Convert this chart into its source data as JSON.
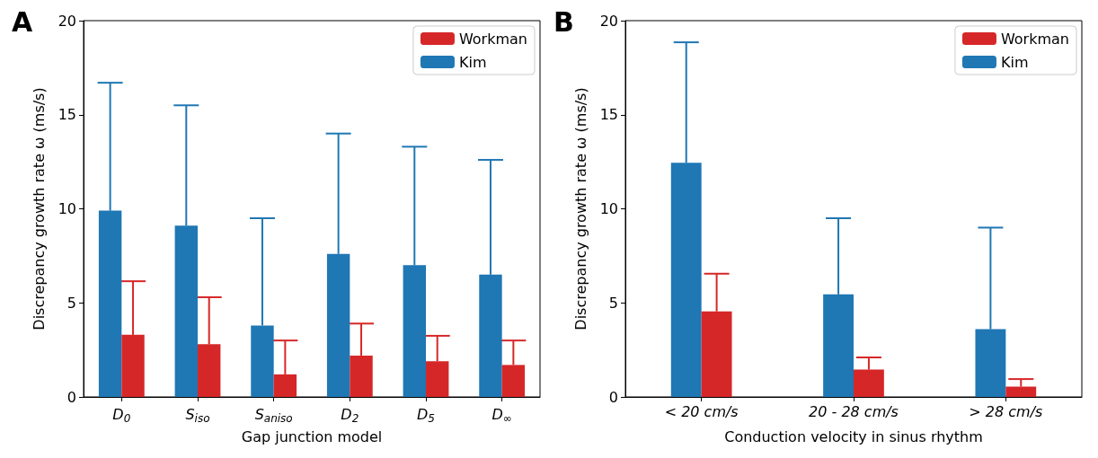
{
  "chart_data": [
    {
      "type": "bar",
      "title": "A",
      "xlabel": "Gap junction model",
      "ylabel": "Discrepancy growth rate ω (ms/s)",
      "categories": [
        "D$_{0}$",
        "S$_{iso}$",
        "S$_{aniso}$",
        "D$_{2}$",
        "D$_{5}$",
        "D$_{∞}$"
      ],
      "series": [
        {
          "name": "Kim",
          "color": "#1f77b4",
          "values": [
            9.9,
            9.1,
            3.8,
            7.6,
            7.0,
            6.5
          ],
          "errors": [
            [
              9.9,
              16.7
            ],
            [
              9.1,
              15.5
            ],
            [
              3.8,
              9.5
            ],
            [
              7.6,
              14.0
            ],
            [
              7.0,
              13.3
            ],
            [
              6.5,
              12.6
            ]
          ]
        },
        {
          "name": "Workman",
          "color": "#d62728",
          "values": [
            3.3,
            2.8,
            1.2,
            2.2,
            1.9,
            1.7
          ],
          "errors": [
            [
              3.3,
              6.15
            ],
            [
              2.8,
              5.3
            ],
            [
              1.2,
              3.0
            ],
            [
              2.2,
              3.9
            ],
            [
              1.9,
              3.25
            ],
            [
              1.7,
              3.0
            ]
          ]
        }
      ],
      "ylim": [
        0,
        20
      ],
      "yticks": [
        0,
        5,
        10,
        15,
        20
      ],
      "grid": false,
      "legend": "top right"
    },
    {
      "type": "bar",
      "title": "B",
      "xlabel": "Conduction velocity in sinus rhythm",
      "ylabel": "Discrepancy growth rate ω (ms/s)",
      "categories": [
        "< 20 cm/s",
        "20 - 28 cm/s",
        "> 28 cm/s"
      ],
      "series": [
        {
          "name": "Kim",
          "color": "#1f77b4",
          "values": [
            12.45,
            5.45,
            3.6
          ],
          "errors": [
            [
              12.45,
              18.85
            ],
            [
              5.45,
              9.5
            ],
            [
              3.6,
              9.0
            ]
          ]
        },
        {
          "name": "Workman",
          "color": "#d62728",
          "values": [
            4.55,
            1.45,
            0.55
          ],
          "errors": [
            [
              4.55,
              6.55
            ],
            [
              1.45,
              2.1
            ],
            [
              0.55,
              0.95
            ]
          ]
        }
      ],
      "ylim": [
        0,
        20
      ],
      "yticks": [
        0,
        5,
        10,
        15,
        20
      ],
      "grid": false,
      "legend": "top right"
    }
  ]
}
